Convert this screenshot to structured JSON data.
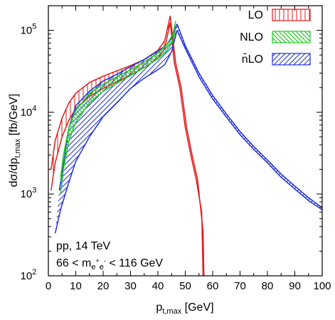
{
  "chart_data": {
    "type": "area",
    "xlabel": "p",
    "xlabel_sub": "t,max",
    "xlabel_unit": " [GeV]",
    "ylabel": "dσ/dp",
    "ylabel_sub": "t,max",
    "ylabel_unit": " [fb/GeV]",
    "xlim": [
      0,
      100
    ],
    "ylim": [
      100,
      200000
    ],
    "yscale": "log",
    "legend_position": "top-right",
    "x_ticks": [
      0,
      10,
      20,
      30,
      40,
      50,
      60,
      70,
      80,
      90,
      100
    ],
    "x_tick_labels": [
      "0",
      "10",
      "20",
      "30",
      "40",
      "50",
      "60",
      "70",
      "80",
      "90",
      "100"
    ],
    "y_ticks": [
      100,
      1000,
      10000,
      100000
    ],
    "y_tick_base": "10",
    "y_tick_exponents": [
      "2",
      "3",
      "4",
      "5"
    ],
    "annotations": [
      {
        "text": "pp, 14 TeV"
      },
      {
        "text_prefix": "66 < m",
        "sub": "e",
        "sup1": "+",
        "sub2": "e",
        "sup2": "-",
        "text_suffix": " < 116 GeV"
      }
    ],
    "series": [
      {
        "name": "LO",
        "color": "#e31a1c",
        "hatch": "vertical",
        "upper": [
          [
            1,
            2000
          ],
          [
            2.5,
            4500
          ],
          [
            5,
            8500
          ],
          [
            7.5,
            13000
          ],
          [
            10,
            17000
          ],
          [
            15,
            23000
          ],
          [
            20,
            27500
          ],
          [
            25,
            32000
          ],
          [
            30,
            37000
          ],
          [
            35,
            44000
          ],
          [
            40,
            57000
          ],
          [
            42.5,
            75000
          ],
          [
            44.5,
            150000
          ]
        ],
        "lower": [
          [
            1,
            1100
          ],
          [
            2.5,
            2400
          ],
          [
            5,
            5000
          ],
          [
            7.5,
            8000
          ],
          [
            10,
            11000
          ],
          [
            15,
            15500
          ],
          [
            20,
            19500
          ],
          [
            25,
            23500
          ],
          [
            30,
            28500
          ],
          [
            35,
            35000
          ],
          [
            40,
            45000
          ],
          [
            42.5,
            60000
          ],
          [
            44.5,
            125000
          ]
        ],
        "tail": [
          [
            44.5,
            125000
          ],
          [
            46,
            40000
          ],
          [
            48,
            20000
          ],
          [
            50,
            6500
          ],
          [
            52,
            3000
          ],
          [
            54,
            1500
          ],
          [
            56,
            600
          ],
          [
            56.5,
            100
          ]
        ],
        "tail_offset": [
          [
            44.5,
            150000
          ],
          [
            46.5,
            40000
          ],
          [
            48.5,
            20000
          ],
          [
            50.5,
            6500
          ],
          [
            52.5,
            3000
          ],
          [
            54.5,
            1500
          ],
          [
            56.5,
            350
          ],
          [
            56.8,
            100
          ]
        ]
      },
      {
        "name": "NLO",
        "color": "#22cc22",
        "hatch": "diagonal-down",
        "upper": [
          [
            4.5,
            1600
          ],
          [
            5.5,
            3000
          ],
          [
            7.5,
            6500
          ],
          [
            10,
            10500
          ],
          [
            15,
            17000
          ],
          [
            20,
            22000
          ],
          [
            25,
            27000
          ],
          [
            30,
            33000
          ],
          [
            35,
            41000
          ],
          [
            40,
            53000
          ],
          [
            43,
            65000
          ],
          [
            45.5,
            90000
          ],
          [
            46.5,
            130000
          ]
        ],
        "lower": [
          [
            4.5,
            1000
          ],
          [
            5.5,
            2000
          ],
          [
            7.5,
            4500
          ],
          [
            10,
            7500
          ],
          [
            15,
            13000
          ],
          [
            20,
            18000
          ],
          [
            25,
            22500
          ],
          [
            30,
            28000
          ],
          [
            35,
            35000
          ],
          [
            40,
            45000
          ],
          [
            43,
            55000
          ],
          [
            45.5,
            72000
          ],
          [
            46.5,
            105000
          ]
        ]
      },
      {
        "name": "n̄LO",
        "color": "#1f2fd6",
        "hatch": "diagonal-up",
        "upper": [
          [
            4,
            1100
          ],
          [
            5,
            1800
          ],
          [
            7.5,
            6500
          ],
          [
            10,
            12000
          ],
          [
            15,
            18000
          ],
          [
            20,
            24000
          ],
          [
            25,
            29000
          ],
          [
            30,
            36000
          ],
          [
            35,
            44000
          ],
          [
            40,
            56000
          ],
          [
            43,
            65000
          ],
          [
            45,
            80000
          ],
          [
            47,
            120000
          ]
        ],
        "lower": [
          [
            2.5,
            330
          ],
          [
            4.5,
            650
          ],
          [
            7.5,
            1400
          ],
          [
            10,
            2500
          ],
          [
            15,
            5000
          ],
          [
            20,
            8800
          ],
          [
            25,
            13000
          ],
          [
            30,
            19500
          ],
          [
            35,
            26000
          ],
          [
            40,
            33000
          ],
          [
            42.5,
            38000
          ],
          [
            45,
            55000
          ],
          [
            47,
            100000
          ]
        ],
        "tail": [
          [
            47,
            120000
          ],
          [
            50,
            65000
          ],
          [
            55,
            30000
          ],
          [
            60,
            16000
          ],
          [
            65,
            9500
          ],
          [
            70,
            5800
          ],
          [
            75,
            3800
          ],
          [
            80,
            2600
          ],
          [
            85,
            1750
          ],
          [
            90,
            1250
          ],
          [
            95,
            900
          ],
          [
            100,
            680
          ]
        ],
        "tail_lower": [
          [
            47,
            100000
          ],
          [
            50,
            60000
          ],
          [
            55,
            27000
          ],
          [
            60,
            14500
          ],
          [
            65,
            8700
          ],
          [
            70,
            5300
          ],
          [
            75,
            3500
          ],
          [
            80,
            2400
          ],
          [
            85,
            1600
          ],
          [
            90,
            1150
          ],
          [
            95,
            830
          ],
          [
            100,
            640
          ]
        ]
      }
    ]
  }
}
